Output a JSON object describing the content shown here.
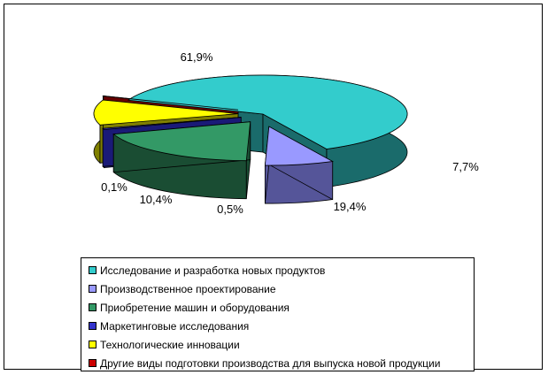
{
  "chart_data": {
    "type": "pie",
    "categories": [
      "Исследование и разработка новых продуктов",
      "Производственное проектирование",
      "Приобретение машин и оборудования",
      "Маркетинговые исследования",
      "Технологические инновации",
      "Другие виды подготовки производства для выпуска новой продукции"
    ],
    "values": [
      61.9,
      7.7,
      19.4,
      0.5,
      10.4,
      0.1
    ],
    "value_labels": [
      "61,9%",
      "7,7%",
      "19,4%",
      "0,5%",
      "10,4%",
      "0,1%"
    ],
    "colors": [
      "#33CCCC",
      "#9999FF",
      "#339966",
      "#3333CC",
      "#FFFF00",
      "#CC0000"
    ],
    "side_colors": [
      "#1A6B6B",
      "#555599",
      "#1A4D33",
      "#1A1A77",
      "#808000",
      "#660000"
    ],
    "legend_position": "bottom",
    "title": ""
  }
}
